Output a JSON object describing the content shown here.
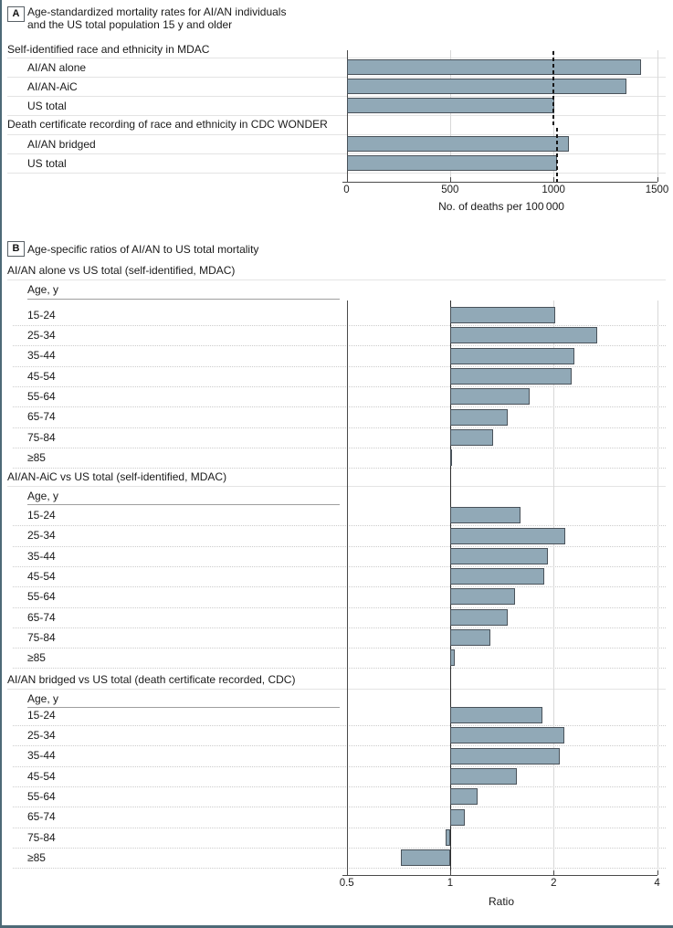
{
  "colors": {
    "bar_fill": "#91a9b7",
    "bar_border": "#49525a",
    "frame": "#4d6a77",
    "axis": "#4a4a4a",
    "reference_dash": "#151515"
  },
  "chart_data": [
    {
      "type": "bar",
      "orientation": "horizontal",
      "panel_label": "A",
      "title_lines": [
        "Age-standardized mortality rates for AI/AN individuals",
        "and the US total population 15 y and older"
      ],
      "xlabel": "No. of deaths per 100 000",
      "xlim": [
        0,
        1500
      ],
      "xticks": [
        0,
        500,
        1000,
        1500
      ],
      "xtick_labels": [
        "0",
        "500",
        "1000",
        "1500"
      ],
      "grid": "vertical-light",
      "groups": [
        {
          "header": "Self-identified race and ethnicity in MDAC",
          "reference_line": 1000,
          "rows": [
            {
              "label": "AI/AN alone",
              "value": 1420
            },
            {
              "label": "AI/AN-AiC",
              "value": 1350
            },
            {
              "label": "US total",
              "value": 1000
            }
          ]
        },
        {
          "header": "Death certificate recording of race and ethnicity in CDC WONDER",
          "reference_line": 1015,
          "rows": [
            {
              "label": "AI/AN bridged",
              "value": 1070
            },
            {
              "label": "US total",
              "value": 1015
            }
          ]
        }
      ]
    },
    {
      "type": "bar",
      "orientation": "horizontal",
      "scale": "log2",
      "panel_label": "B",
      "title": "Age-specific ratios of AI/AN to US total mortality",
      "xlabel": "Ratio",
      "xlim": [
        0.5,
        4
      ],
      "xticks": [
        0.5,
        1,
        2,
        4
      ],
      "xtick_labels": [
        "0.5",
        "1",
        "2",
        "4"
      ],
      "baseline": 1,
      "age_col_header": "Age, y",
      "groups": [
        {
          "header": "AI/AN alone vs US total (self-identified, MDAC)",
          "rows": [
            {
              "label": "15-24",
              "value": 2.02
            },
            {
              "label": "25-34",
              "value": 2.68
            },
            {
              "label": "35-44",
              "value": 2.3
            },
            {
              "label": "45-54",
              "value": 2.25
            },
            {
              "label": "55-64",
              "value": 1.7
            },
            {
              "label": "65-74",
              "value": 1.47
            },
            {
              "label": "75-84",
              "value": 1.33
            },
            {
              "label": "≥85",
              "value": 1.01
            }
          ]
        },
        {
          "header": "AI/AN-AiC vs US total (self-identified, MDAC)",
          "rows": [
            {
              "label": "15-24",
              "value": 1.6
            },
            {
              "label": "25-34",
              "value": 2.16
            },
            {
              "label": "35-44",
              "value": 1.93
            },
            {
              "label": "45-54",
              "value": 1.88
            },
            {
              "label": "55-64",
              "value": 1.54
            },
            {
              "label": "65-74",
              "value": 1.47
            },
            {
              "label": "75-84",
              "value": 1.31
            },
            {
              "label": "≥85",
              "value": 1.03
            }
          ]
        },
        {
          "header": "AI/AN bridged vs US total (death certificate recorded, CDC)",
          "rows": [
            {
              "label": "15-24",
              "value": 1.85
            },
            {
              "label": "25-34",
              "value": 2.15
            },
            {
              "label": "35-44",
              "value": 2.08
            },
            {
              "label": "45-54",
              "value": 1.56
            },
            {
              "label": "55-64",
              "value": 1.2
            },
            {
              "label": "65-74",
              "value": 1.1
            },
            {
              "label": "75-84",
              "value": 0.97
            },
            {
              "label": "≥85",
              "value": 0.72
            }
          ]
        }
      ]
    }
  ]
}
